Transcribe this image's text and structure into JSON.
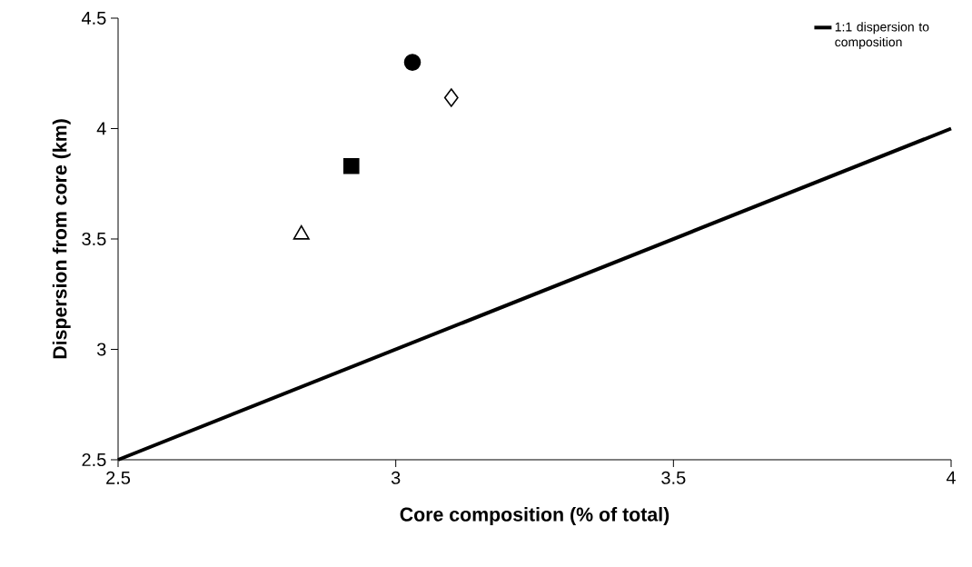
{
  "chart_data": {
    "type": "scatter",
    "xlabel": "Core composition (% of total)",
    "ylabel": "Dispersion from core (km)",
    "xlim": [
      2.5,
      4
    ],
    "ylim": [
      2.5,
      4.5
    ],
    "xticks": [
      2.5,
      3,
      3.5,
      4
    ],
    "yticks": [
      2.5,
      3,
      3.5,
      4,
      4.5
    ],
    "legend": "top right",
    "series": [
      {
        "type": "line",
        "name": "1:1 dispersion to composition",
        "color": "#000000",
        "x": [
          2.5,
          4
        ],
        "values": [
          2.5,
          4
        ],
        "marker": "none",
        "line_style": "solid"
      },
      {
        "color": "#000000",
        "marker": "circle",
        "x": [
          3.03
        ],
        "values": [
          4.3
        ]
      },
      {
        "color": "#ffffff",
        "marker": "diamond",
        "x": [
          3.1
        ],
        "values": [
          4.14
        ]
      },
      {
        "color": "#000000",
        "marker": "square",
        "x": [
          2.92
        ],
        "values": [
          3.83
        ]
      },
      {
        "color": "#ffffff",
        "marker": "triangle",
        "x": [
          2.83
        ],
        "values": [
          3.52
        ]
      }
    ]
  }
}
